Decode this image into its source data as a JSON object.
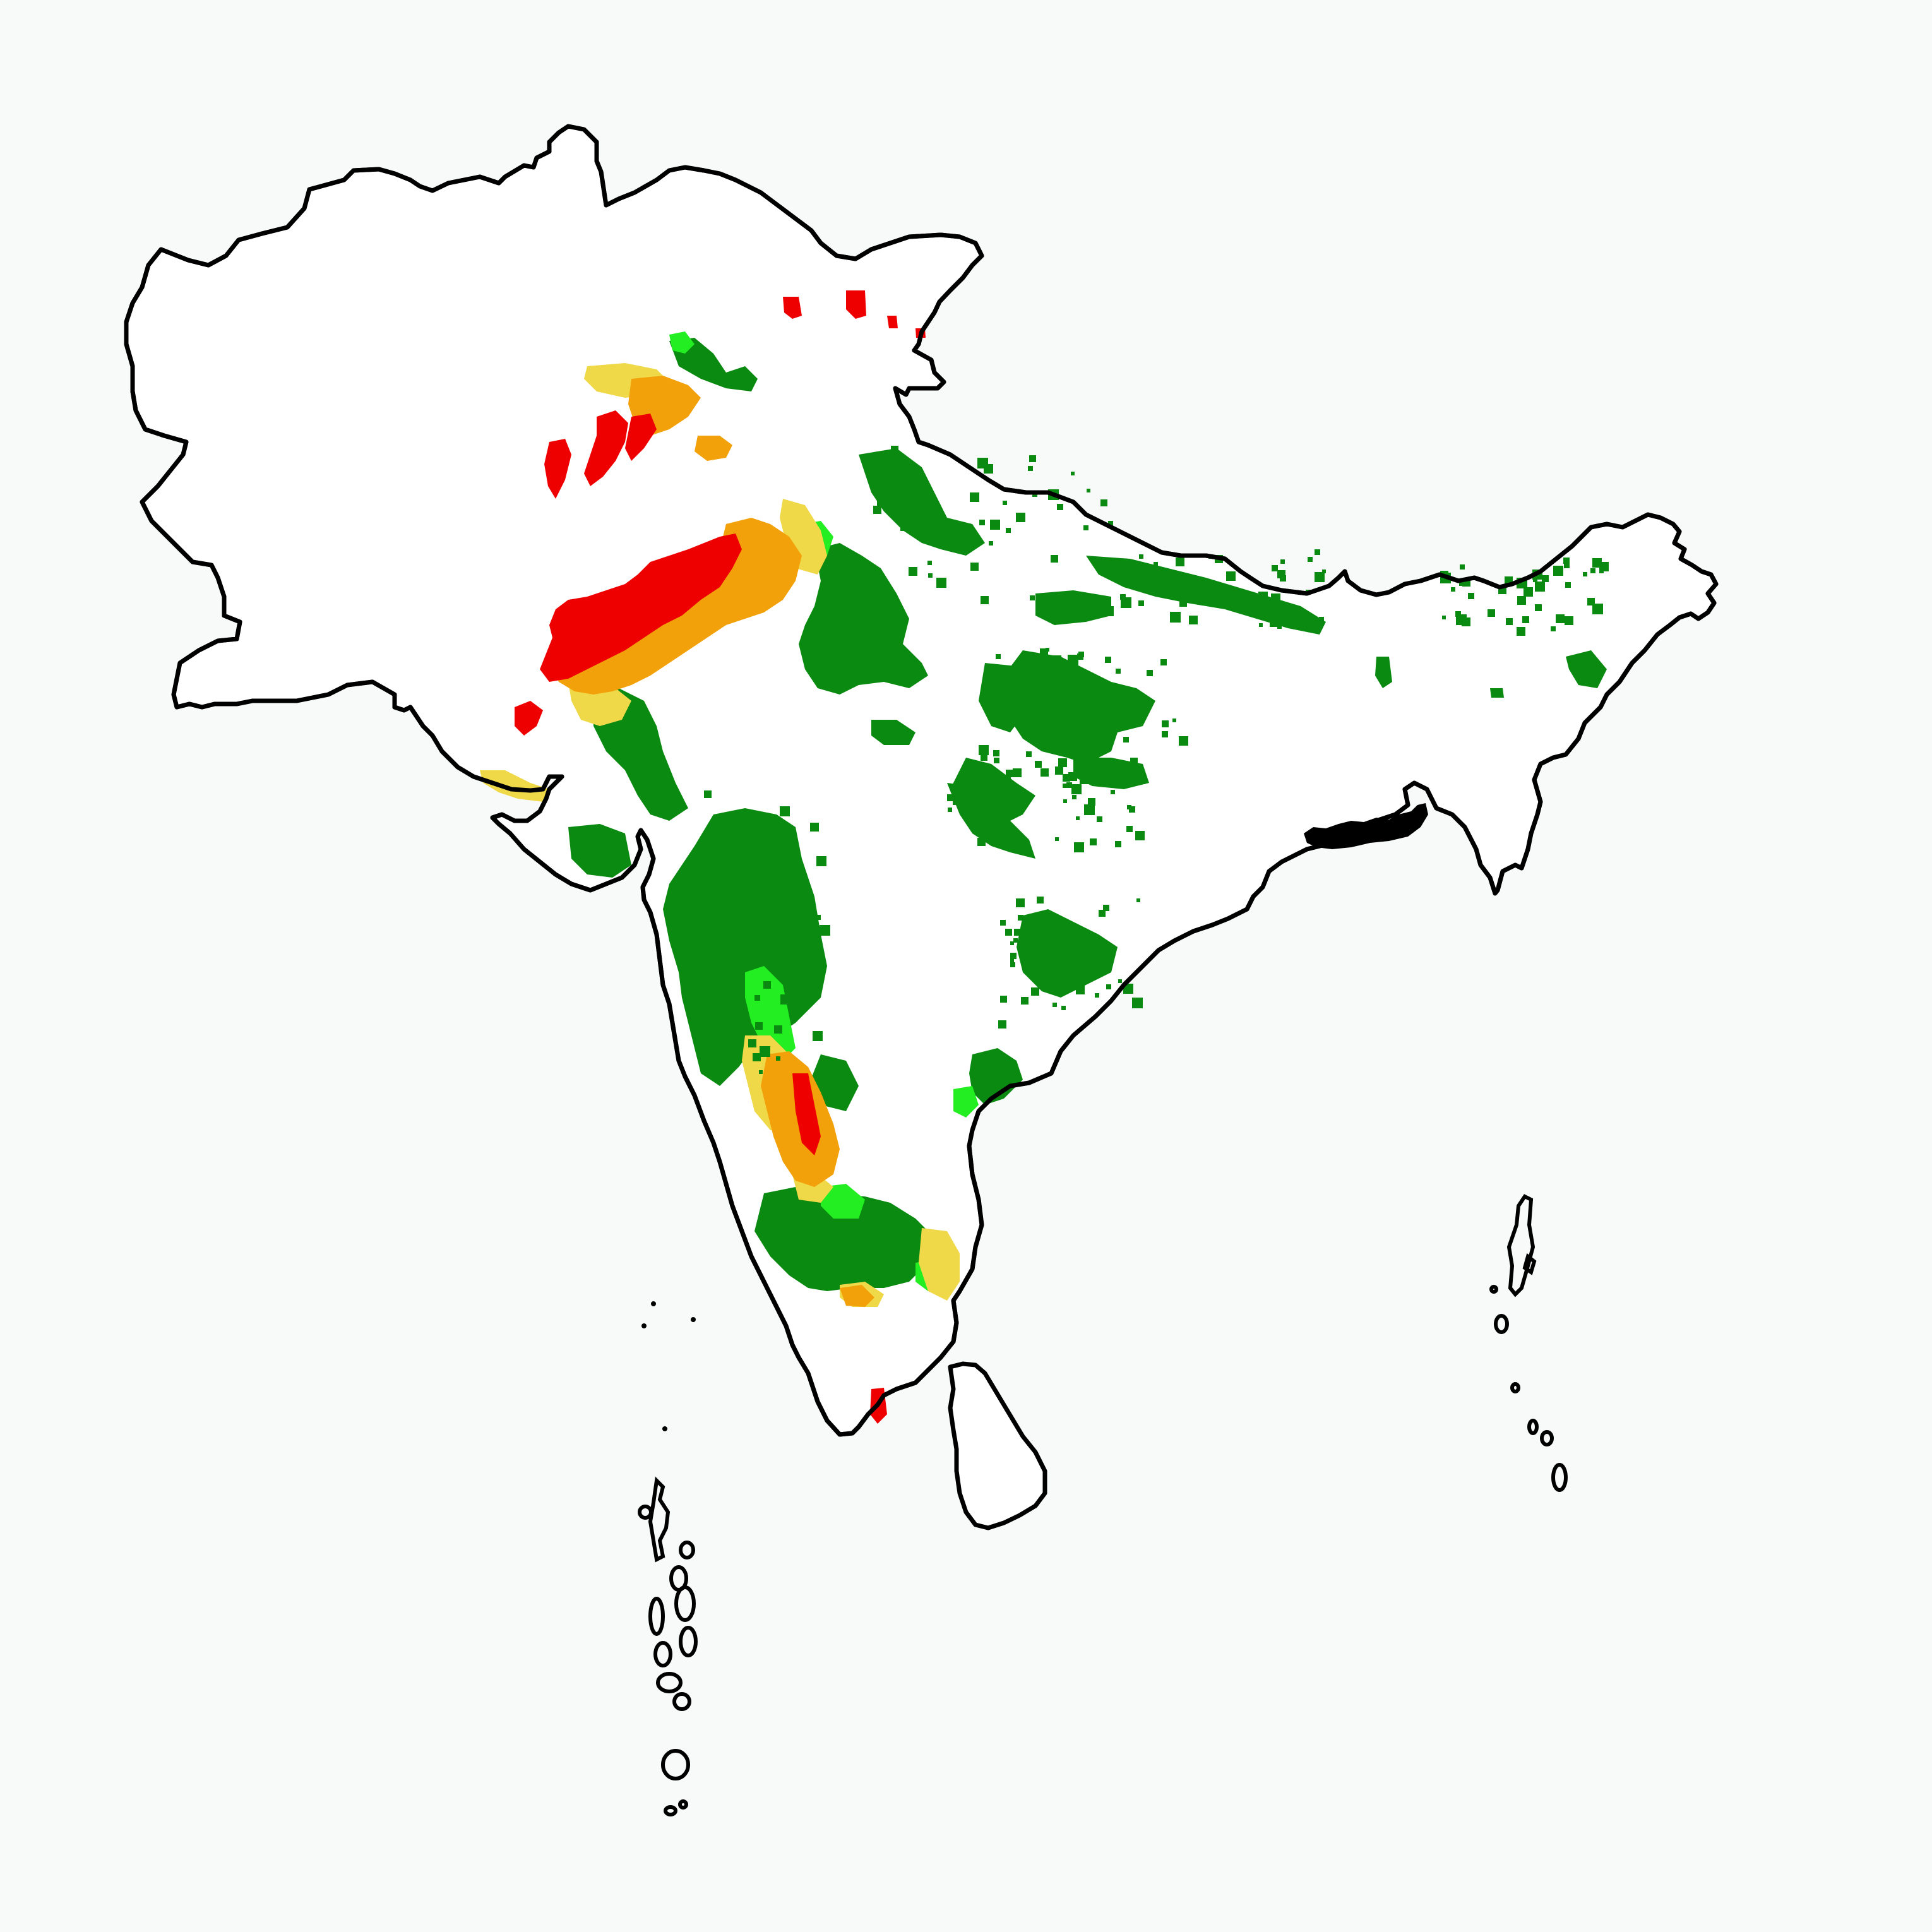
{
  "map": {
    "title": "",
    "legend": [],
    "classes": [
      {
        "id": "very-high",
        "color": "#ee0000"
      },
      {
        "id": "high",
        "color": "#f2a10a"
      },
      {
        "id": "moderate",
        "color": "#efd949"
      },
      {
        "id": "low",
        "color": "#22ee22"
      },
      {
        "id": "very-low",
        "color": "#0a8a10"
      }
    ],
    "background": "#f8f9f9",
    "land_fill": "#ffffff",
    "outline_color": "#000000"
  }
}
